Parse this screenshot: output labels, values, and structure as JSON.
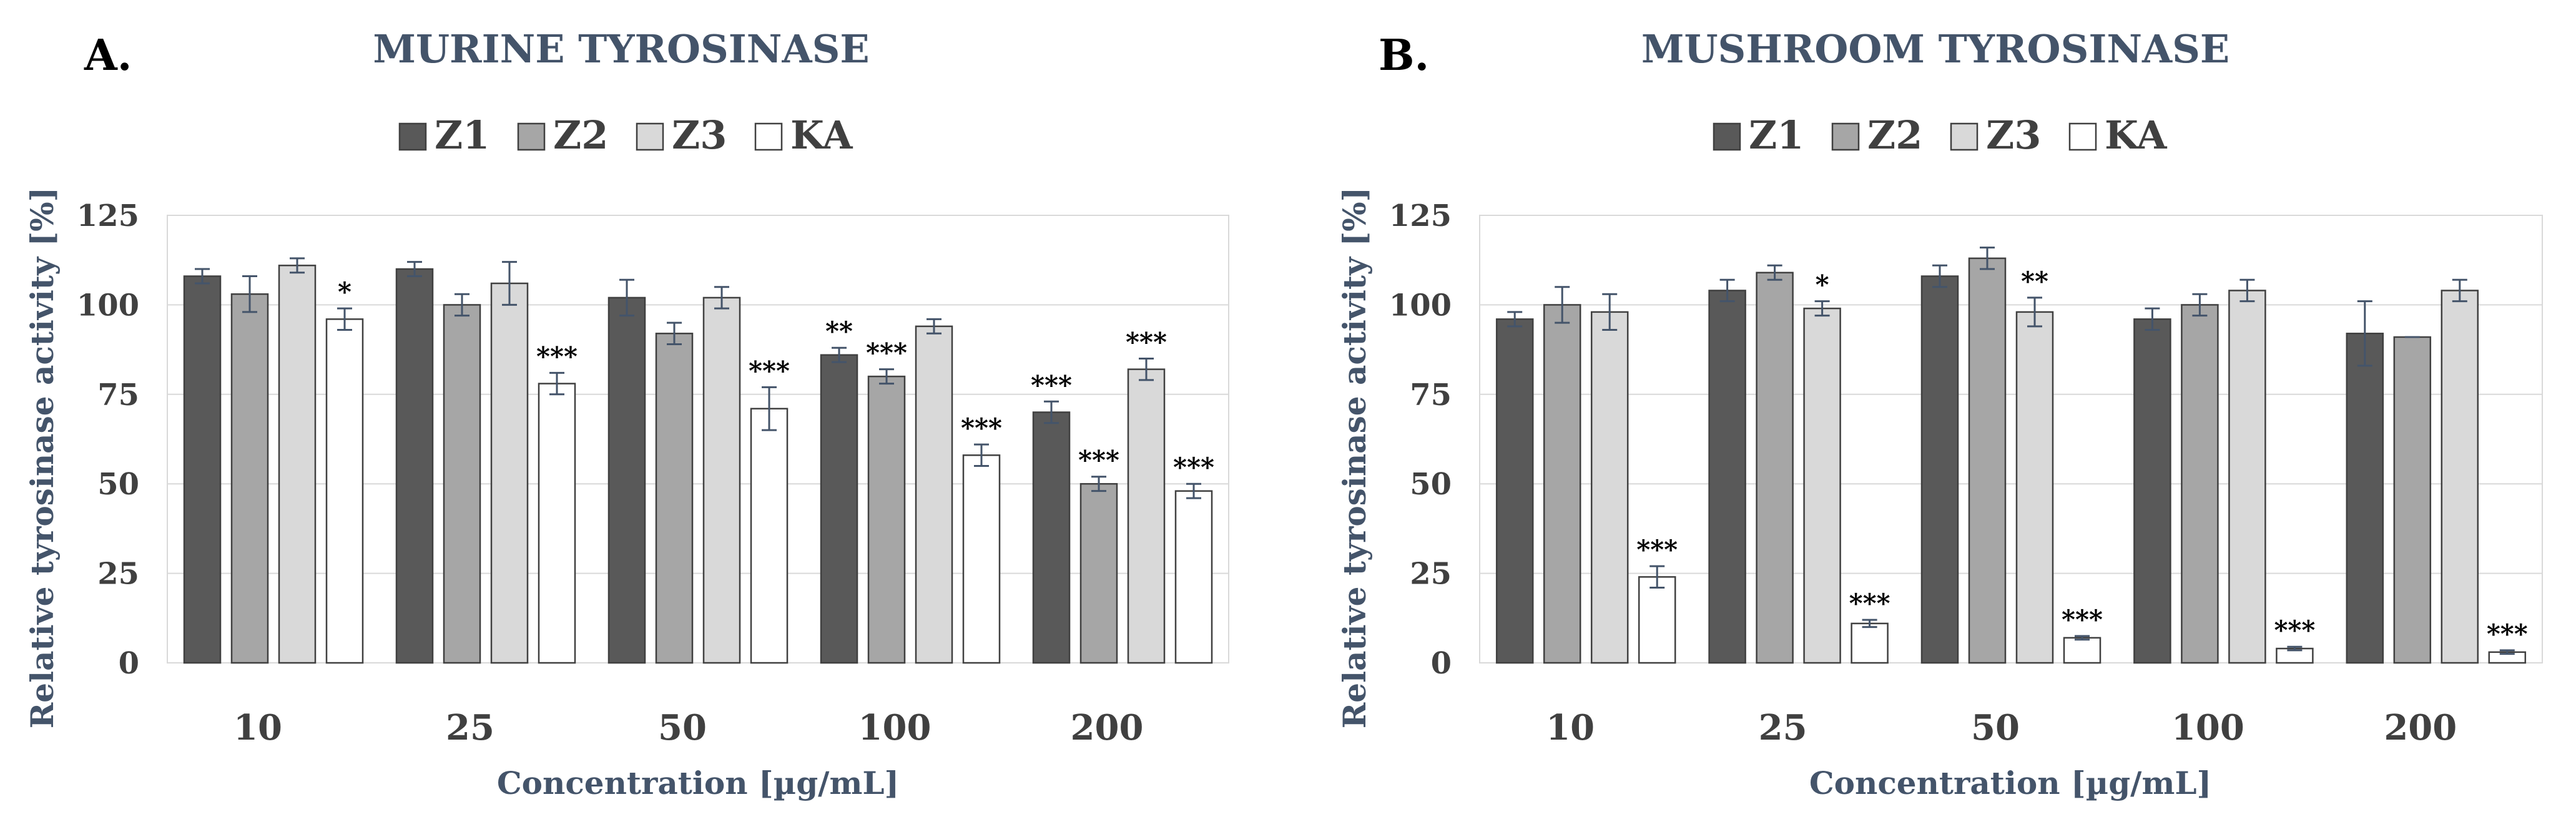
{
  "colors": {
    "Z1": "#595959",
    "Z2": "#a6a6a6",
    "Z3": "#d9d9d9",
    "KA": "#ffffff",
    "title": "#44546a"
  },
  "legend": [
    "Z1",
    "Z2",
    "Z3",
    "KA"
  ],
  "chart_data": [
    {
      "panel_label": "A.",
      "title": "MURINE TYROSINASE",
      "type": "bar",
      "xlabel": "Concentration [µg/mL]",
      "ylabel": "Relative tyrosinase activity [%]",
      "ylim": [
        0,
        125
      ],
      "yticks": [
        "0",
        "25",
        "50",
        "75",
        "100",
        "125"
      ],
      "categories": [
        "10",
        "25",
        "50",
        "100",
        "200"
      ],
      "series": [
        {
          "name": "Z1",
          "values": [
            108,
            110,
            102,
            86,
            70
          ],
          "errors": [
            2,
            2,
            5,
            2,
            3
          ],
          "significance": [
            "",
            "",
            "",
            "**",
            "***"
          ]
        },
        {
          "name": "Z2",
          "values": [
            103,
            100,
            92,
            80,
            50
          ],
          "errors": [
            5,
            3,
            3,
            2,
            2
          ],
          "significance": [
            "",
            "",
            "",
            "***",
            "***"
          ]
        },
        {
          "name": "Z3",
          "values": [
            111,
            106,
            102,
            94,
            82
          ],
          "errors": [
            2,
            6,
            3,
            2,
            3
          ],
          "significance": [
            "",
            "",
            "",
            "",
            "***"
          ]
        },
        {
          "name": "KA",
          "values": [
            96,
            78,
            71,
            58,
            48
          ],
          "errors": [
            3,
            3,
            6,
            3,
            2
          ],
          "significance": [
            "*",
            "***",
            "***",
            "***",
            "***"
          ]
        }
      ]
    },
    {
      "panel_label": "B.",
      "title": "MUSHROOM TYROSINASE",
      "type": "bar",
      "xlabel": "Concentration [µg/mL]",
      "ylabel": "Relative tyrosinase activity [%]",
      "ylim": [
        0,
        125
      ],
      "yticks": [
        "0",
        "25",
        "50",
        "75",
        "100",
        "125"
      ],
      "categories": [
        "10",
        "25",
        "50",
        "100",
        "200"
      ],
      "series": [
        {
          "name": "Z1",
          "values": [
            96,
            104,
            108,
            96,
            92
          ],
          "errors": [
            2,
            3,
            3,
            3,
            9
          ],
          "significance": [
            "",
            "",
            "",
            "",
            ""
          ]
        },
        {
          "name": "Z2",
          "values": [
            100,
            109,
            113,
            100,
            91
          ],
          "errors": [
            5,
            2,
            3,
            3,
            0
          ],
          "significance": [
            "",
            "",
            "",
            "",
            ""
          ]
        },
        {
          "name": "Z3",
          "values": [
            98,
            99,
            98,
            104,
            104
          ],
          "errors": [
            5,
            2,
            4,
            3,
            3
          ],
          "significance": [
            "",
            "*",
            "**",
            "",
            ""
          ]
        },
        {
          "name": "KA",
          "values": [
            24,
            11,
            7,
            4,
            3
          ],
          "errors": [
            3,
            1,
            0.5,
            0.5,
            0.5
          ],
          "significance": [
            "***",
            "***",
            "***",
            "***",
            "***"
          ]
        }
      ]
    }
  ]
}
